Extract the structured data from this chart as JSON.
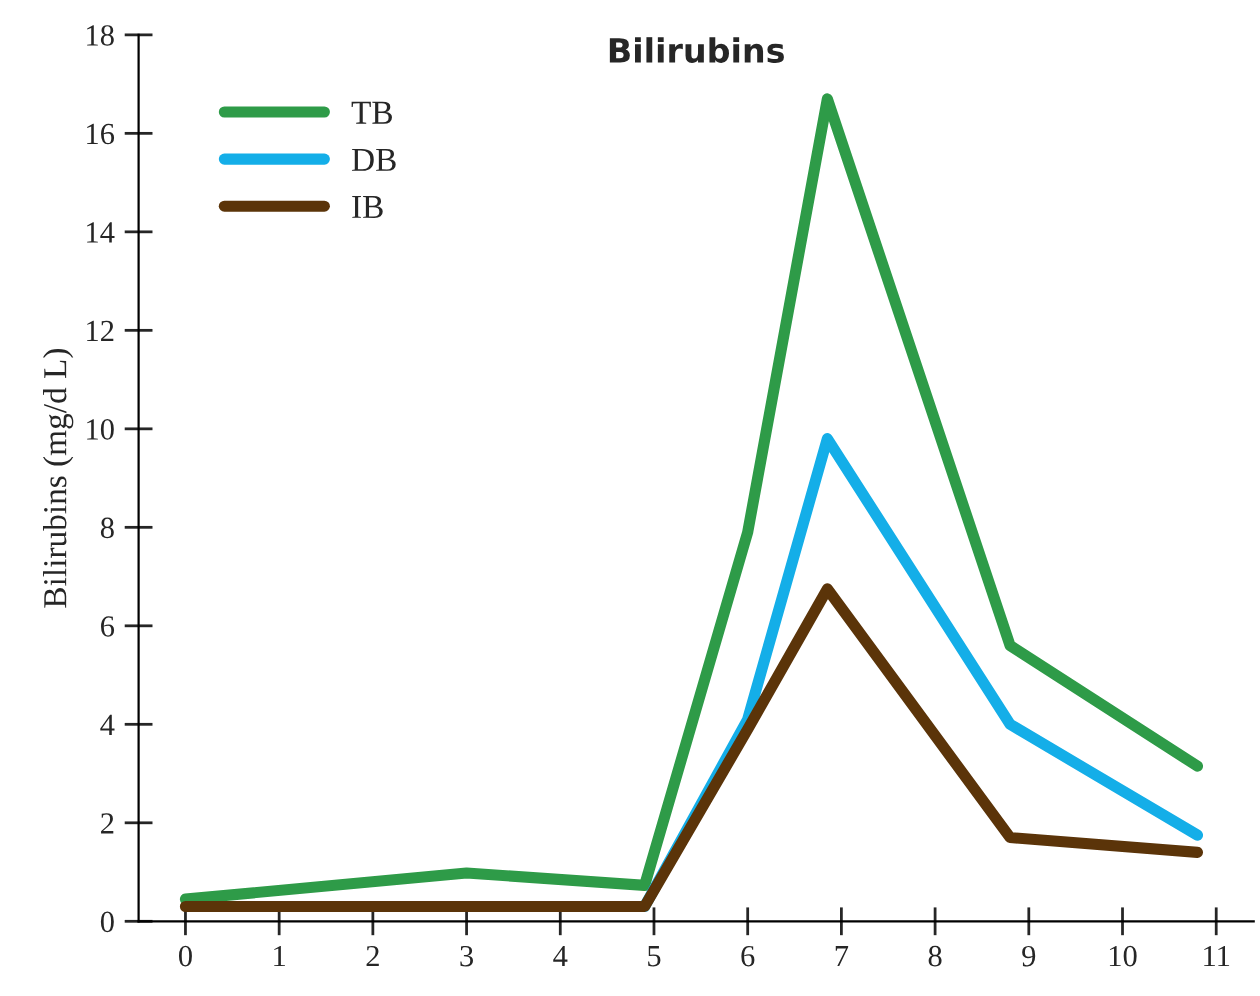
{
  "chart_data": {
    "type": "line",
    "title": "Bilirubins",
    "ylabel": "Bilirubins (mg/d L)",
    "xlim": [
      -0.5,
      11.4
    ],
    "xticks": [
      0,
      1,
      2,
      3,
      4,
      5,
      6,
      7,
      8,
      9,
      10,
      11
    ],
    "ylim": [
      0,
      18
    ],
    "yticks": [
      0,
      2,
      4,
      6,
      8,
      10,
      12,
      14,
      16,
      18
    ],
    "grid": false,
    "legend": "top left",
    "marker": "none",
    "line_style": "solid",
    "series": [
      {
        "name": "TB",
        "color": "#2e9b48",
        "x": [
          0,
          3,
          4.9,
          6,
          6.85,
          8.8,
          10.8
        ],
        "values": [
          0.45,
          0.98,
          0.73,
          7.9,
          16.7,
          5.6,
          3.15
        ]
      },
      {
        "name": "DB",
        "color": "#14aee8",
        "x": [
          4.9,
          6,
          6.85,
          8.8,
          10.8
        ],
        "values": [
          0.3,
          4.1,
          9.8,
          4.0,
          1.75
        ]
      },
      {
        "name": "IB",
        "color": "#5b3409",
        "x": [
          0,
          3,
          4.9,
          6,
          6.85,
          8.8,
          10.8
        ],
        "values": [
          0.3,
          0.3,
          0.3,
          3.9,
          6.75,
          1.7,
          1.4
        ]
      }
    ]
  }
}
